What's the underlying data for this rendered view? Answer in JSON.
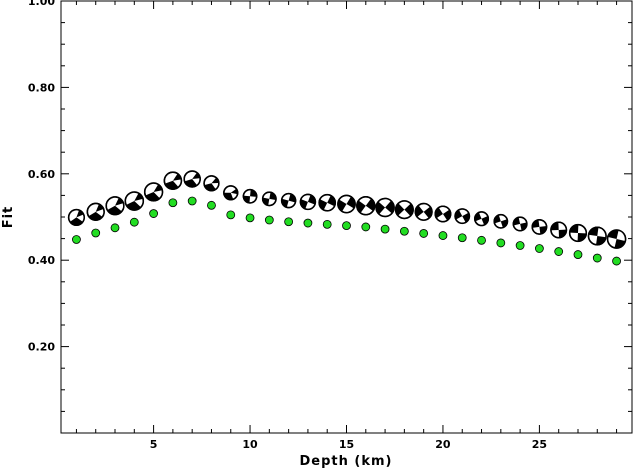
{
  "chart_data": {
    "type": "scatter",
    "xlabel": "Depth (km)",
    "ylabel": "Fit",
    "xlim": [
      0.2,
      29.8
    ],
    "ylim": [
      0.0,
      1.0
    ],
    "x_ticks": [
      5,
      10,
      15,
      20,
      25
    ],
    "x_tick_labels": [
      "5",
      "10",
      "15",
      "20",
      "25"
    ],
    "y_ticks": [
      0.2,
      0.4,
      0.6,
      0.8,
      1.0
    ],
    "y_tick_labels": [
      "0.20",
      "0.40",
      "0.60",
      "0.80",
      "1.00"
    ],
    "grid": false,
    "series": [
      {
        "marker": "mechanism",
        "color": "#000000",
        "x": [
          1,
          2,
          3,
          4,
          5,
          6,
          7,
          8,
          9,
          10,
          11,
          12,
          13,
          14,
          15,
          16,
          17,
          18,
          19,
          20,
          21,
          22,
          23,
          24,
          25,
          26,
          27,
          28,
          29
        ],
        "values": [
          0.499,
          0.512,
          0.526,
          0.537,
          0.558,
          0.584,
          0.588,
          0.578,
          0.556,
          0.548,
          0.542,
          0.538,
          0.535,
          0.533,
          0.53,
          0.526,
          0.522,
          0.517,
          0.512,
          0.507,
          0.502,
          0.496,
          0.49,
          0.484,
          0.477,
          0.47,
          0.463,
          0.456,
          0.449
        ]
      },
      {
        "marker": "circle",
        "color": "#22dd22",
        "x": [
          1,
          2,
          3,
          4,
          5,
          6,
          7,
          8,
          9,
          10,
          11,
          12,
          13,
          14,
          15,
          16,
          17,
          18,
          19,
          20,
          21,
          22,
          23,
          24,
          25,
          26,
          27,
          28,
          29
        ],
        "values": [
          0.448,
          0.463,
          0.475,
          0.488,
          0.508,
          0.533,
          0.537,
          0.527,
          0.505,
          0.498,
          0.493,
          0.489,
          0.486,
          0.483,
          0.48,
          0.477,
          0.472,
          0.467,
          0.462,
          0.457,
          0.452,
          0.446,
          0.44,
          0.434,
          0.427,
          0.42,
          0.413,
          0.405,
          0.398
        ]
      }
    ]
  }
}
